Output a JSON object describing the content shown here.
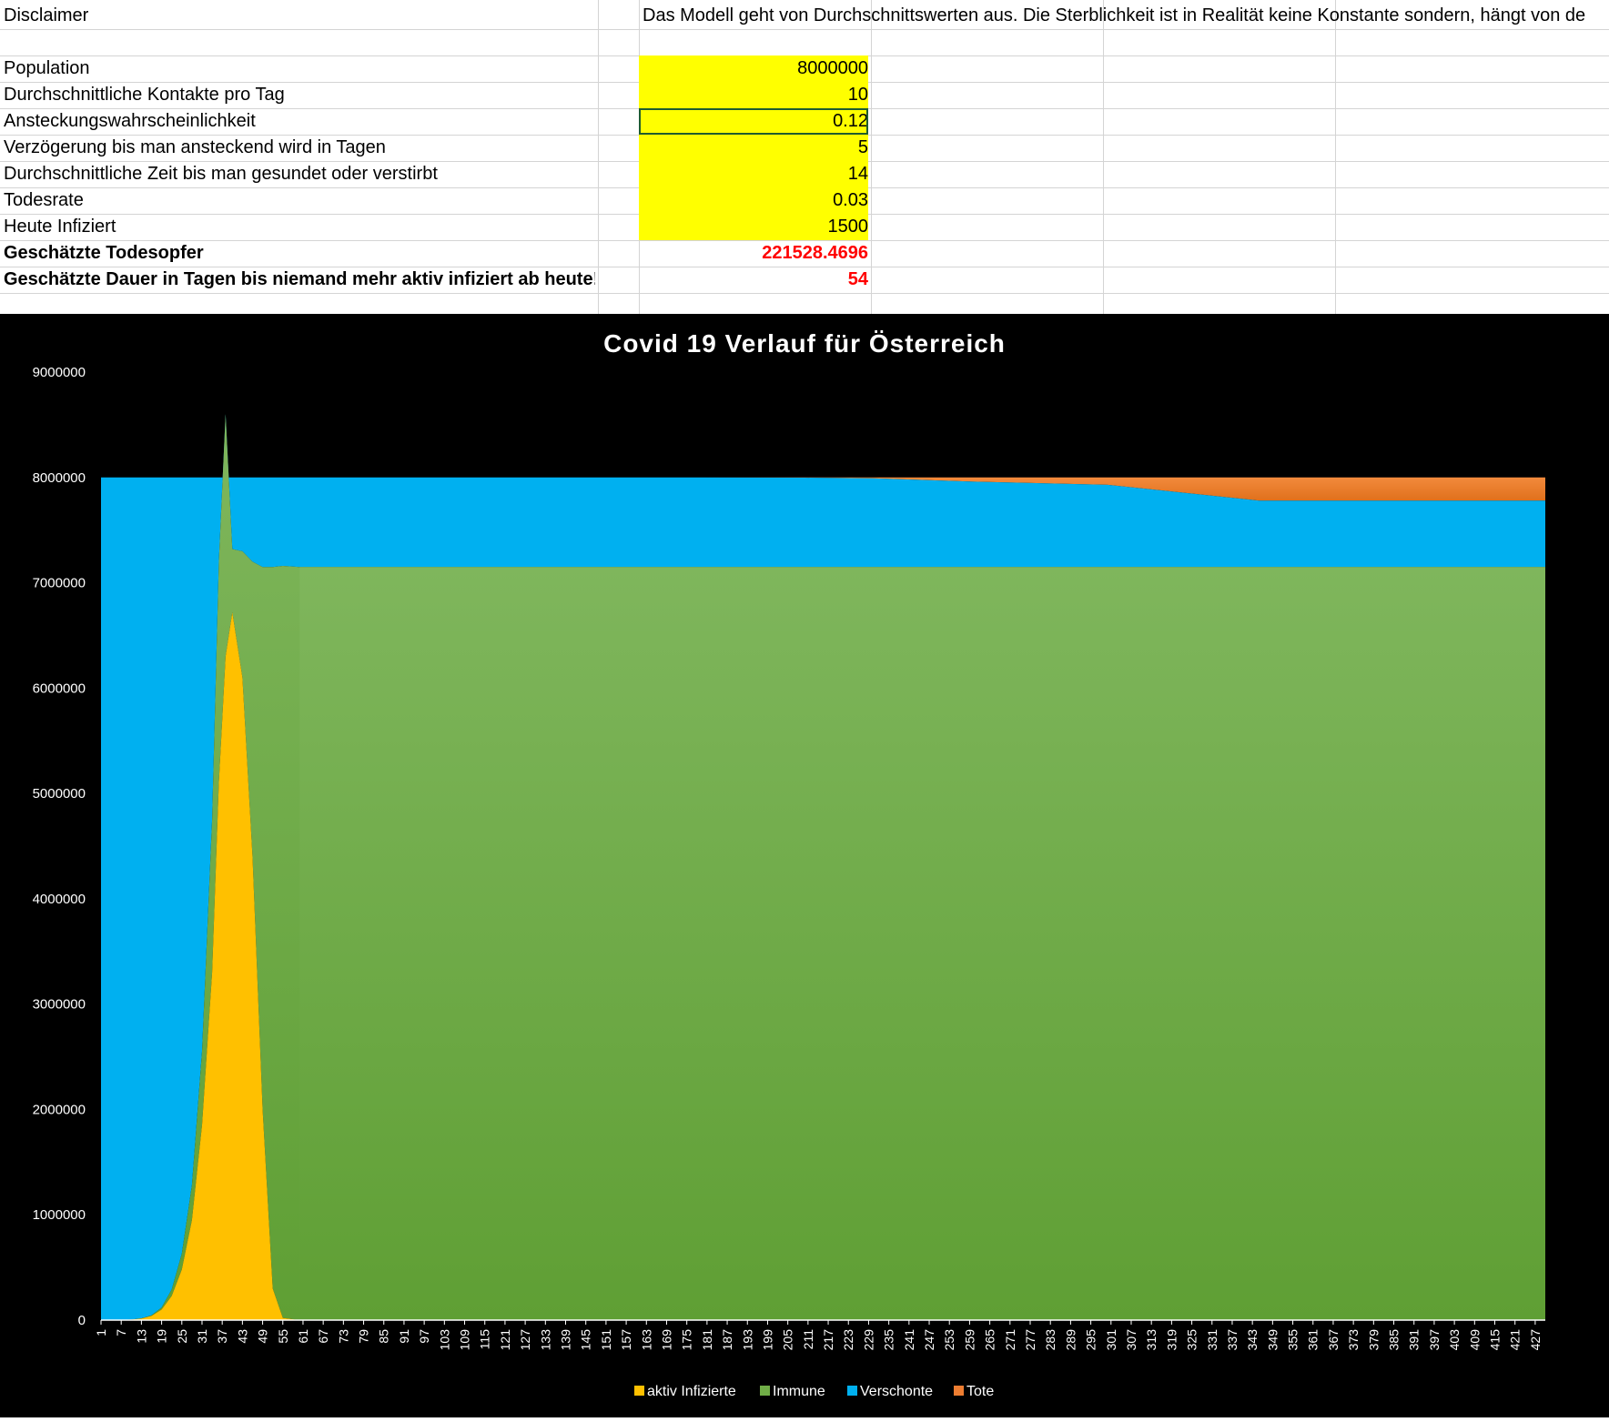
{
  "sheet": {
    "rows": [
      {
        "label": "Disclaimer",
        "value": "",
        "note": "Das Modell geht von Durchschnittswerten aus. Die Sterblichkeit ist in Realität keine Konstante sondern, hängt von de"
      },
      {
        "label": "",
        "value": ""
      },
      {
        "label": "Population",
        "value": "8000000",
        "input": true
      },
      {
        "label": "Durchschnittliche Kontakte pro Tag",
        "value": "10",
        "input": true
      },
      {
        "label": "Ansteckungswahrscheinlichkeit",
        "value": "0.12",
        "input": true,
        "selected": true
      },
      {
        "label": "Verzögerung bis man ansteckend wird in Tagen",
        "value": "5",
        "input": true
      },
      {
        "label": "Durchschnittliche Zeit bis man gesundet oder verstirbt",
        "value": "14",
        "input": true
      },
      {
        "label": "Todesrate",
        "value": "0.03",
        "input": true
      },
      {
        "label": "Heute Infiziert",
        "value": "1500",
        "input": true
      },
      {
        "label": "Geschätzte Todesopfer",
        "value": "221528.4696",
        "result": true
      },
      {
        "label": "Geschätzte Dauer in Tagen bis niemand mehr aktiv infiziert ab heute!",
        "value": "54",
        "result": true
      }
    ]
  },
  "chart_data": {
    "type": "area",
    "stacked": true,
    "title": "Covid 19 Verlauf für Österreich",
    "x_range": [
      1,
      430
    ],
    "ylim": [
      0,
      9000000
    ],
    "y_ticks": [
      0,
      1000000,
      2000000,
      3000000,
      4000000,
      5000000,
      6000000,
      7000000,
      8000000,
      9000000
    ],
    "y_tick_labels": [
      "0",
      "1000000",
      "2000000",
      "3000000",
      "4000000",
      "5000000",
      "6000000",
      "7000000",
      "8000000",
      "9000000"
    ],
    "x_tick_start": 1,
    "x_tick_step": 6,
    "x_tick_last": 427,
    "legend": [
      "aktiv Infizierte",
      "Immune",
      "Verschonte",
      "Tote"
    ],
    "legend_position": "bottom",
    "colors": {
      "infected": "#ffc000",
      "immune": "#70ad47",
      "spared": "#00b0f0",
      "dead": "#ed7d31",
      "background": "#000000"
    },
    "series": [
      {
        "name": "aktiv Infizierte",
        "x": [
          1,
          10,
          13,
          16,
          19,
          22,
          25,
          28,
          31,
          34,
          36,
          38,
          40,
          43,
          46,
          49,
          52,
          55,
          60,
          430
        ],
        "values": [
          0,
          5000,
          15000,
          40000,
          100000,
          230000,
          480000,
          950000,
          1850000,
          3300000,
          5100000,
          6300000,
          6720000,
          6100000,
          4400000,
          2000000,
          300000,
          20000,
          0,
          0
        ]
      },
      {
        "name": "Immune",
        "x": [
          1,
          10,
          13,
          16,
          19,
          22,
          25,
          28,
          31,
          34,
          36,
          38,
          40,
          43,
          46,
          49,
          52,
          55,
          60,
          430
        ],
        "values": [
          0,
          0,
          1000,
          5000,
          20000,
          60000,
          150000,
          330000,
          700000,
          1450000,
          2100000,
          2300000,
          600000,
          1200000,
          2800000,
          5150000,
          6850000,
          7140000,
          7150000,
          7150000
        ]
      },
      {
        "name": "Verschonte",
        "x": [
          1,
          10,
          13,
          16,
          19,
          22,
          25,
          28,
          31,
          34,
          36,
          38,
          40,
          43,
          46,
          49,
          52,
          55,
          60,
          430
        ],
        "values": [
          8000000,
          7995000,
          7984000,
          7955000,
          7880000,
          7710000,
          7370000,
          6720000,
          5450000,
          3250000,
          800000,
          400000,
          10000,
          5000,
          3000,
          1000,
          500,
          0,
          0,
          0
        ]
      },
      {
        "name": "Tote",
        "x": [
          1,
          10,
          13,
          16,
          19,
          22,
          25,
          28,
          31,
          34,
          36,
          38,
          40,
          43,
          46,
          49,
          52,
          55,
          60,
          430
        ],
        "values": [
          0,
          0,
          0,
          0,
          0,
          0,
          0,
          0,
          0,
          0,
          0,
          0,
          0,
          0,
          0,
          0,
          0,
          0,
          0,
          0
        ]
      }
    ],
    "stack_tops": {
      "x": [
        1,
        180,
        210,
        230,
        260,
        300,
        345,
        380,
        430
      ],
      "immune_top": [
        8000000,
        8000000,
        7995000,
        7900000,
        7420000,
        7280000,
        7150000,
        7150000,
        7150000
      ],
      "spared_top": [
        8000000,
        8000000,
        7998000,
        7992000,
        7960000,
        7930000,
        7780000,
        7780000,
        7780000
      ],
      "dead_top": [
        8000000,
        8000000,
        8000000,
        8000000,
        8000000,
        8000000,
        8000000,
        8000000,
        8000000
      ]
    }
  }
}
